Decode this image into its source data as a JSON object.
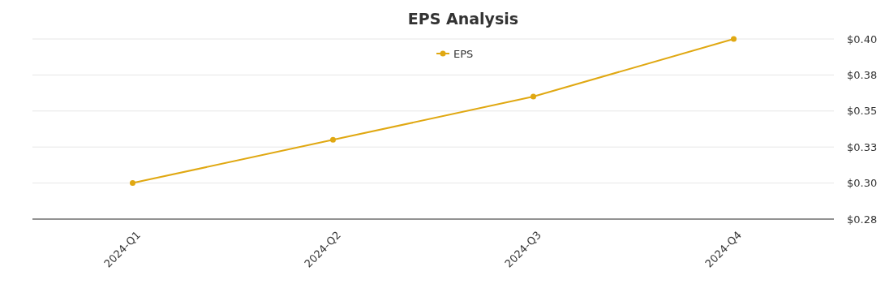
{
  "chart_data": {
    "type": "line",
    "title": "EPS Analysis",
    "categories": [
      "2024-Q1",
      "2024-Q2",
      "2024-Q3",
      "2024-Q4"
    ],
    "series": [
      {
        "name": "EPS",
        "color": "#e0a812",
        "values": [
          0.3,
          0.33,
          0.36,
          0.4
        ]
      }
    ],
    "ylim": [
      0.275,
      0.4
    ],
    "yticks": [
      {
        "value": 0.275,
        "label": "$0.28"
      },
      {
        "value": 0.3,
        "label": "$0.30"
      },
      {
        "value": 0.325,
        "label": "$0.33"
      },
      {
        "value": 0.35,
        "label": "$0.35"
      },
      {
        "value": 0.375,
        "label": "$0.38"
      },
      {
        "value": 0.4,
        "label": "$0.40"
      }
    ],
    "grid": "y",
    "legend": "top",
    "marker": "circle",
    "line_style": "solid"
  }
}
